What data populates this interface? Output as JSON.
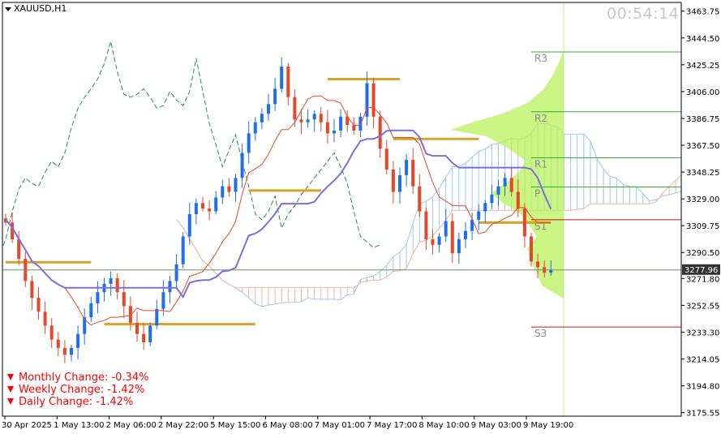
{
  "header": {
    "symbol": "XAUUSD,H1",
    "timer": "00:54:14"
  },
  "changes": [
    {
      "label": "Monthly Change: -0.34%",
      "direction": "down"
    },
    {
      "label": "Weekly Change: -1.42%",
      "direction": "down"
    },
    {
      "label": "Daily Change: -1.42%",
      "direction": "down"
    }
  ],
  "colors": {
    "bull": "#1e6fe8",
    "bear": "#e8462a",
    "kijun": "#7b6fe0",
    "tenkan": "#e34a2a",
    "chikou": "#2e8b57",
    "cloud_up": "#9fc8e6",
    "cloud_down": "#f2b3a6",
    "pivot_ref": "#d9a128",
    "volume_profile": "#b8f05a",
    "green_line": "#2db52d",
    "red_line": "#d01010",
    "dark_line": "#2c5c2c",
    "price_tag": "#333333"
  },
  "chart_data": {
    "type": "candlestick",
    "symbol": "XAUUSD",
    "timeframe": "H1",
    "x_tick_labels": [
      "30 Apr 2025",
      "1 May 13:00",
      "2 May 06:00",
      "2 May 22:00",
      "5 May 15:00",
      "6 May 08:00",
      "7 May 01:00",
      "7 May 17:00",
      "8 May 10:00",
      "9 May 03:00",
      "9 May 19:00"
    ],
    "y_ticks": [
      3463.75,
      3444.5,
      3425.25,
      3406.0,
      3386.75,
      3367.5,
      3348.25,
      3329.0,
      3309.75,
      3290.5,
      3271.8,
      3252.55,
      3233.3,
      3214.05,
      3194.8,
      3175.55
    ],
    "y_tick_labels": [
      "3463.75",
      "3444.50",
      "3425.25",
      "3406.00",
      "3386.75",
      "3367.50",
      "3348.25",
      "3329.00",
      "3309.75",
      "3290.50",
      "3271.80",
      "3252.55",
      "3233.30",
      "3214.05",
      "3194.80",
      "3175.55"
    ],
    "ylim": [
      3173,
      3470
    ],
    "current_price": 3277.96,
    "current_price_label": "3277.96",
    "close_series": [
      3312,
      3300,
      3286,
      3270,
      3258,
      3248,
      3238,
      3228,
      3222,
      3217,
      3222,
      3232,
      3244,
      3254,
      3262,
      3268,
      3272,
      3262,
      3252,
      3240,
      3232,
      3226,
      3238,
      3250,
      3262,
      3270,
      3282,
      3302,
      3318,
      3326,
      3322,
      3320,
      3330,
      3338,
      3334,
      3344,
      3362,
      3376,
      3384,
      3390,
      3397,
      3408,
      3424,
      3402,
      3386,
      3384,
      3386,
      3390,
      3384,
      3376,
      3378,
      3388,
      3382,
      3378,
      3388,
      3412,
      3388,
      3365,
      3350,
      3334,
      3346,
      3357,
      3338,
      3320,
      3300,
      3296,
      3302,
      3313,
      3290,
      3300,
      3306,
      3314,
      3320,
      3326,
      3332,
      3338,
      3344,
      3334,
      3322,
      3302,
      3284,
      3280,
      3276,
      3278
    ],
    "pivot_levels": [
      {
        "name": "R3",
        "value": 3434.5
      },
      {
        "name": "R2",
        "value": 3391.5
      },
      {
        "name": "R1",
        "value": 3358.5
      },
      {
        "name": "P",
        "value": 3337.5
      },
      {
        "name": "S1",
        "value": 3314.0
      },
      {
        "name": "S3",
        "value": 3237.0
      }
    ],
    "daily_pivot_refs": [
      {
        "value": 3283.5,
        "from": 0,
        "to": 13
      },
      {
        "value": 3239.0,
        "from": 15,
        "to": 38
      },
      {
        "value": 3335.0,
        "from": 37,
        "to": 48
      },
      {
        "value": 3415.0,
        "from": 49,
        "to": 60
      },
      {
        "value": 3372.0,
        "from": 59,
        "to": 72
      },
      {
        "value": 3312.0,
        "from": 72,
        "to": 83
      }
    ],
    "time_marker_index": 88,
    "grid": false,
    "legend": "none"
  }
}
